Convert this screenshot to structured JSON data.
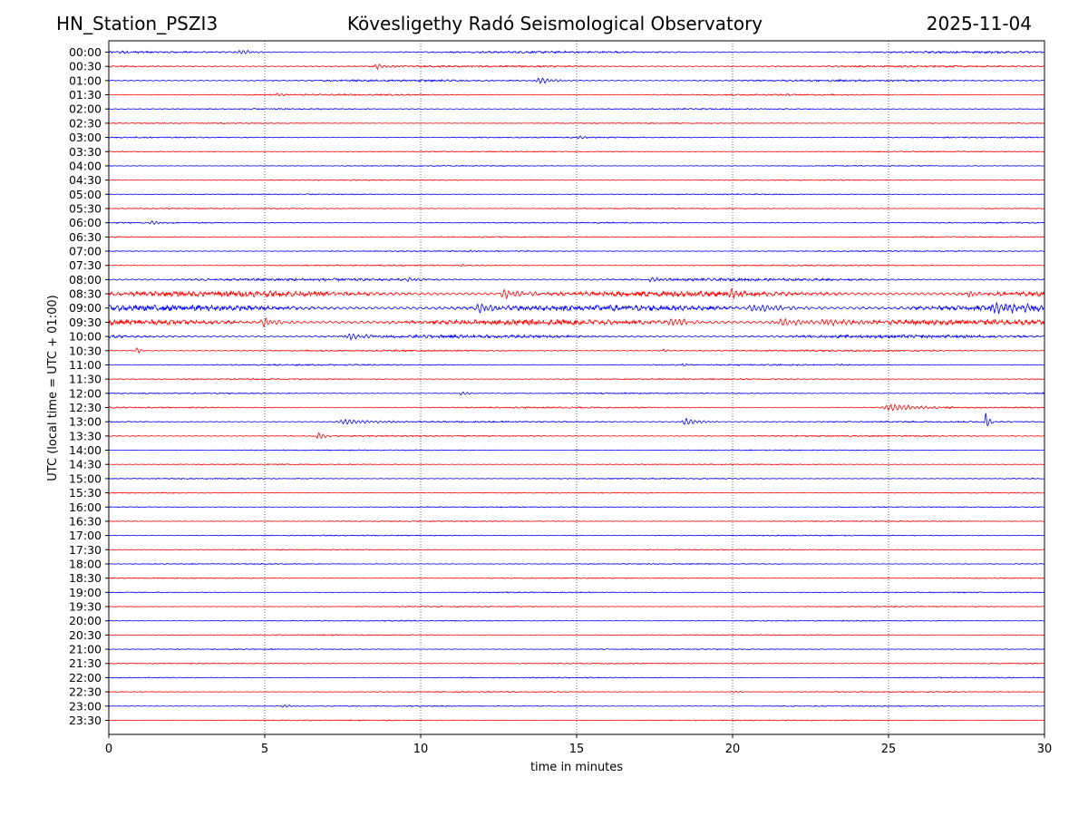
{
  "header": {
    "station": "HN_Station_PSZI3",
    "observatory": "Kövesligethy Radó Seismological Observatory",
    "date": "2025-11-04"
  },
  "chart_data": {
    "type": "line",
    "subtype": "helicorder",
    "xlabel": "time in minutes",
    "ylabel": "UTC (local time = UTC + 01:00)",
    "xlim": [
      0,
      30
    ],
    "x_ticks": [
      "0",
      "5",
      "10",
      "15",
      "20",
      "25",
      "30"
    ],
    "grid": "vertical dotted at 5-minute ticks",
    "colors": {
      "even_rows": "#0000ff",
      "odd_rows": "#ff0000"
    },
    "rows": [
      {
        "label": "00:00",
        "amp": 1.0,
        "events": [
          {
            "t": 4.2,
            "a": 2.5,
            "d": 0.5
          },
          {
            "t": 0.3,
            "a": 1.5,
            "d": 0.2
          }
        ]
      },
      {
        "label": "00:30",
        "amp": 0.9,
        "events": [
          {
            "t": 8.6,
            "a": 3.0,
            "d": 0.4
          }
        ]
      },
      {
        "label": "01:00",
        "amp": 0.9,
        "events": [
          {
            "t": 13.8,
            "a": 3.5,
            "d": 0.5
          }
        ]
      },
      {
        "label": "01:30",
        "amp": 0.7,
        "events": [
          {
            "t": 5.4,
            "a": 2.0,
            "d": 0.2
          }
        ]
      },
      {
        "label": "02:00",
        "amp": 0.6,
        "events": []
      },
      {
        "label": "02:30",
        "amp": 0.5,
        "events": []
      },
      {
        "label": "03:00",
        "amp": 0.6,
        "events": [
          {
            "t": 15.1,
            "a": 1.5,
            "d": 0.3
          }
        ]
      },
      {
        "label": "03:30",
        "amp": 0.5,
        "events": []
      },
      {
        "label": "04:00",
        "amp": 0.5,
        "events": []
      },
      {
        "label": "04:30",
        "amp": 0.5,
        "events": []
      },
      {
        "label": "05:00",
        "amp": 0.5,
        "events": []
      },
      {
        "label": "05:30",
        "amp": 0.5,
        "events": []
      },
      {
        "label": "06:00",
        "amp": 0.6,
        "events": [
          {
            "t": 1.4,
            "a": 2.0,
            "d": 0.3
          }
        ]
      },
      {
        "label": "06:30",
        "amp": 0.5,
        "events": []
      },
      {
        "label": "07:00",
        "amp": 0.6,
        "events": [
          {
            "t": 11.6,
            "a": 1.5,
            "d": 0.2
          }
        ]
      },
      {
        "label": "07:30",
        "amp": 0.6,
        "events": [
          {
            "t": 11.3,
            "a": 1.5,
            "d": 0.1
          }
        ]
      },
      {
        "label": "08:00",
        "amp": 1.3,
        "events": [
          {
            "t": 9.6,
            "a": 2.5,
            "d": 0.3
          },
          {
            "t": 17.4,
            "a": 2.5,
            "d": 0.4
          }
        ]
      },
      {
        "label": "08:30",
        "amp": 2.8,
        "events": [
          {
            "t": 12.7,
            "a": 5.0,
            "d": 0.6
          },
          {
            "t": 20.0,
            "a": 4.5,
            "d": 0.4
          },
          {
            "t": 27.6,
            "a": 6.0,
            "d": 0.15
          }
        ]
      },
      {
        "label": "09:00",
        "amp": 2.8,
        "events": [
          {
            "t": 11.9,
            "a": 5.0,
            "d": 0.6
          },
          {
            "t": 20.8,
            "a": 4.0,
            "d": 1.0
          },
          {
            "t": 28.5,
            "a": 6.0,
            "d": 1.0
          }
        ]
      },
      {
        "label": "09:30",
        "amp": 2.6,
        "events": [
          {
            "t": 5.0,
            "a": 5.0,
            "d": 0.5
          },
          {
            "t": 18.1,
            "a": 5.0,
            "d": 0.5
          },
          {
            "t": 21.6,
            "a": 4.0,
            "d": 1.0
          },
          {
            "t": 23.0,
            "a": 4.5,
            "d": 1.0
          }
        ]
      },
      {
        "label": "10:00",
        "amp": 1.5,
        "events": [
          {
            "t": 7.7,
            "a": 4.0,
            "d": 0.5
          }
        ]
      },
      {
        "label": "10:30",
        "amp": 0.8,
        "events": [
          {
            "t": 0.9,
            "a": 4.0,
            "d": 0.15
          },
          {
            "t": 17.8,
            "a": 2.0,
            "d": 0.1
          }
        ]
      },
      {
        "label": "11:00",
        "amp": 0.7,
        "events": [
          {
            "t": 18.4,
            "a": 2.0,
            "d": 0.15
          },
          {
            "t": 23.5,
            "a": 1.5,
            "d": 0.1
          }
        ]
      },
      {
        "label": "11:30",
        "amp": 0.6,
        "events": []
      },
      {
        "label": "12:00",
        "amp": 0.6,
        "events": [
          {
            "t": 11.3,
            "a": 3.0,
            "d": 0.2
          }
        ]
      },
      {
        "label": "12:30",
        "amp": 0.7,
        "events": [
          {
            "t": 25.1,
            "a": 4.0,
            "d": 0.9
          }
        ]
      },
      {
        "label": "13:00",
        "amp": 0.7,
        "events": [
          {
            "t": 7.6,
            "a": 3.0,
            "d": 1.0
          },
          {
            "t": 18.5,
            "a": 4.0,
            "d": 0.5
          },
          {
            "t": 28.1,
            "a": 12.0,
            "d": 0.12
          }
        ]
      },
      {
        "label": "13:30",
        "amp": 0.7,
        "events": [
          {
            "t": 6.7,
            "a": 5.0,
            "d": 0.2
          }
        ]
      },
      {
        "label": "14:00",
        "amp": 0.5,
        "events": []
      },
      {
        "label": "14:30",
        "amp": 0.5,
        "events": []
      },
      {
        "label": "15:00",
        "amp": 0.5,
        "events": []
      },
      {
        "label": "15:30",
        "amp": 0.5,
        "events": []
      },
      {
        "label": "16:00",
        "amp": 0.5,
        "events": []
      },
      {
        "label": "16:30",
        "amp": 0.5,
        "events": []
      },
      {
        "label": "17:00",
        "amp": 0.5,
        "events": []
      },
      {
        "label": "17:30",
        "amp": 0.5,
        "events": []
      },
      {
        "label": "18:00",
        "amp": 0.5,
        "events": []
      },
      {
        "label": "18:30",
        "amp": 0.5,
        "events": []
      },
      {
        "label": "19:00",
        "amp": 0.5,
        "events": []
      },
      {
        "label": "19:30",
        "amp": 0.5,
        "events": []
      },
      {
        "label": "20:00",
        "amp": 0.5,
        "events": []
      },
      {
        "label": "20:30",
        "amp": 0.5,
        "events": []
      },
      {
        "label": "21:00",
        "amp": 0.5,
        "events": []
      },
      {
        "label": "21:30",
        "amp": 0.5,
        "events": []
      },
      {
        "label": "22:00",
        "amp": 0.5,
        "events": []
      },
      {
        "label": "22:30",
        "amp": 0.5,
        "events": [
          {
            "t": 20.0,
            "a": 1.5,
            "d": 0.3
          }
        ]
      },
      {
        "label": "23:00",
        "amp": 0.5,
        "events": [
          {
            "t": 5.6,
            "a": 2.0,
            "d": 0.3
          }
        ]
      },
      {
        "label": "23:30",
        "amp": 0.5,
        "events": []
      }
    ]
  }
}
